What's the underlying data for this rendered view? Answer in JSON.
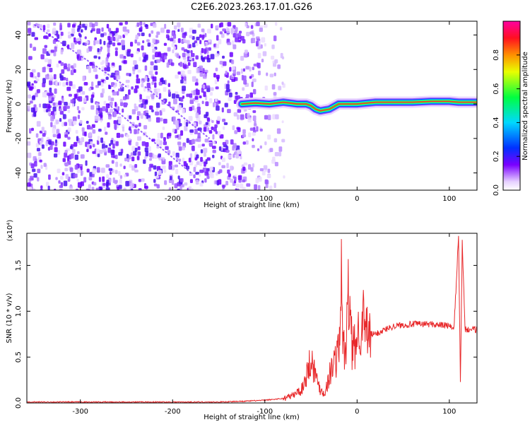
{
  "title": "C2E6.2023.263.17.01.G26",
  "chart_data": [
    {
      "type": "heatmap",
      "xlabel": "Height of straight line (km)",
      "ylabel": "Frequency (Hz)",
      "xlim": [
        -358,
        130
      ],
      "ylim": [
        -50,
        48
      ],
      "xticks": [
        -300,
        -200,
        -100,
        0,
        100
      ],
      "yticks": [
        -40,
        -20,
        0,
        20,
        40
      ],
      "colorbar": {
        "label": "Normalized spectral amplitude",
        "range": [
          0,
          1
        ],
        "ticks": [
          "0.0",
          "0.2",
          "0.4",
          "0.6",
          "0.8"
        ]
      },
      "signal_trace": {
        "x": [
          -125,
          -110,
          -95,
          -80,
          -65,
          -55,
          -50,
          -45,
          -40,
          -30,
          -20,
          -10,
          0,
          20,
          40,
          60,
          80,
          100,
          110,
          120,
          130
        ],
        "y": [
          0,
          0.5,
          0,
          1,
          0,
          0,
          -1,
          -3,
          -4,
          -3,
          0,
          0,
          0,
          1,
          1,
          1,
          1.5,
          1.5,
          1,
          1,
          1
        ]
      }
    },
    {
      "type": "line",
      "xlabel": "Height of straight line (km)",
      "ylabel": "SNR (10 * v/v)",
      "y_multiplier": "(x10⁴)",
      "xlim": [
        -358,
        130
      ],
      "ylim": [
        0,
        1.85
      ],
      "xticks": [
        -300,
        -200,
        -100,
        0,
        100
      ],
      "yticks": [
        "0.0",
        "0.5",
        "1.0",
        "1.5"
      ],
      "series": [
        {
          "color": "#e8282a",
          "x": [
            -358,
            -300,
            -250,
            -200,
            -150,
            -120,
            -100,
            -80,
            -70,
            -60,
            -55,
            -50,
            -45,
            -40,
            -35,
            -30,
            -25,
            -20,
            -17,
            -15,
            -12,
            -10,
            -5,
            0,
            5,
            10,
            20,
            30,
            40,
            50,
            60,
            70,
            80,
            90,
            100,
            105,
            108,
            110,
            112,
            114,
            117,
            120,
            130
          ],
          "y": [
            0.01,
            0.01,
            0.01,
            0.01,
            0.01,
            0.02,
            0.03,
            0.05,
            0.08,
            0.15,
            0.3,
            0.5,
            0.3,
            0.15,
            0.1,
            0.3,
            0.45,
            0.55,
            1.3,
            0.6,
            0.5,
            1.25,
            0.55,
            0.7,
            0.95,
            0.75,
            0.75,
            0.8,
            0.84,
            0.85,
            0.86,
            0.86,
            0.86,
            0.85,
            0.84,
            0.8,
            1.4,
            1.85,
            0.2,
            1.75,
            0.8,
            0.8,
            0.8
          ]
        }
      ]
    }
  ]
}
